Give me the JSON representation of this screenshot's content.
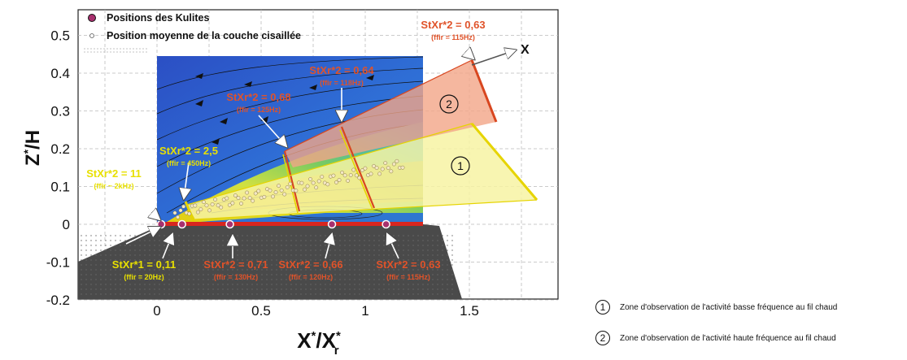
{
  "chart_data": {
    "type": "annotated-flow-field",
    "xlabel": "X*/X*r",
    "ylabel": "Z*/H",
    "xlim": [
      -0.4,
      1.9
    ],
    "ylim": [
      -0.2,
      0.55
    ],
    "x_ticks": [
      "0",
      "0.5",
      "1",
      "1.5"
    ],
    "x_tick_values": [
      0,
      0.5,
      1,
      1.5
    ],
    "y_ticks": [
      "0.5",
      "0.4",
      "0.3",
      "0.2",
      "0.1",
      "0",
      "-0.1",
      "-0.2"
    ],
    "y_tick_values": [
      0.5,
      0.4,
      0.3,
      0.2,
      0.1,
      0,
      -0.1,
      -0.2
    ],
    "grid": true,
    "legend": [
      {
        "label": "Positions des Kulites",
        "marker": "filled-circle-purple"
      },
      {
        "label": "Position moyenne de la couche cisaillée",
        "marker": "open-circle"
      }
    ],
    "axis_arrow_label": "X",
    "kulites_x": [
      0.02,
      0.12,
      0.35,
      0.84,
      1.1
    ],
    "annotations_top": [
      {
        "st": "StXr*2 = 11",
        "f": "(ffir ~ 2kHz)",
        "color": "yellow",
        "x": 0.02
      },
      {
        "st": "StXr*2 = 2,5",
        "f": "(ffir = 450Hz)",
        "color": "yellow",
        "x": 0.2
      },
      {
        "st": "StXr*2 = 0,68",
        "f": "(ffir = 125Hz)",
        "color": "red",
        "x": 0.6
      },
      {
        "st": "StXr*2 = 0,64",
        "f": "(ffir = 118Hz)",
        "color": "red",
        "x": 0.88
      },
      {
        "st": "StXr*2 = 0,63",
        "f": "(ffir = 115Hz)",
        "color": "red",
        "x": 1.52
      }
    ],
    "annotations_bottom": [
      {
        "st": "StXr*1 = 0,11",
        "f": "(ffir = 20Hz)",
        "color": "yellow",
        "x": 0.07
      },
      {
        "st": "StXr*2 = 0,71",
        "f": "(ffir = 130Hz)",
        "color": "red",
        "x": 0.35
      },
      {
        "st": "StXr*2 = 0,66",
        "f": "(ffir = 120Hz)",
        "color": "red",
        "x": 0.84
      },
      {
        "st": "StXr*2 = 0,63",
        "f": "(ffir = 115Hz)",
        "color": "red",
        "x": 1.1
      }
    ],
    "zones": [
      {
        "id": "1",
        "label": "Zone d'observation de l'activité basse fréquence au fil chaud",
        "color": "#f7f3a3"
      },
      {
        "id": "2",
        "label": "Zone d'observation de l'activité haute fréquence au fil chaud",
        "color": "#f2a587"
      }
    ]
  }
}
